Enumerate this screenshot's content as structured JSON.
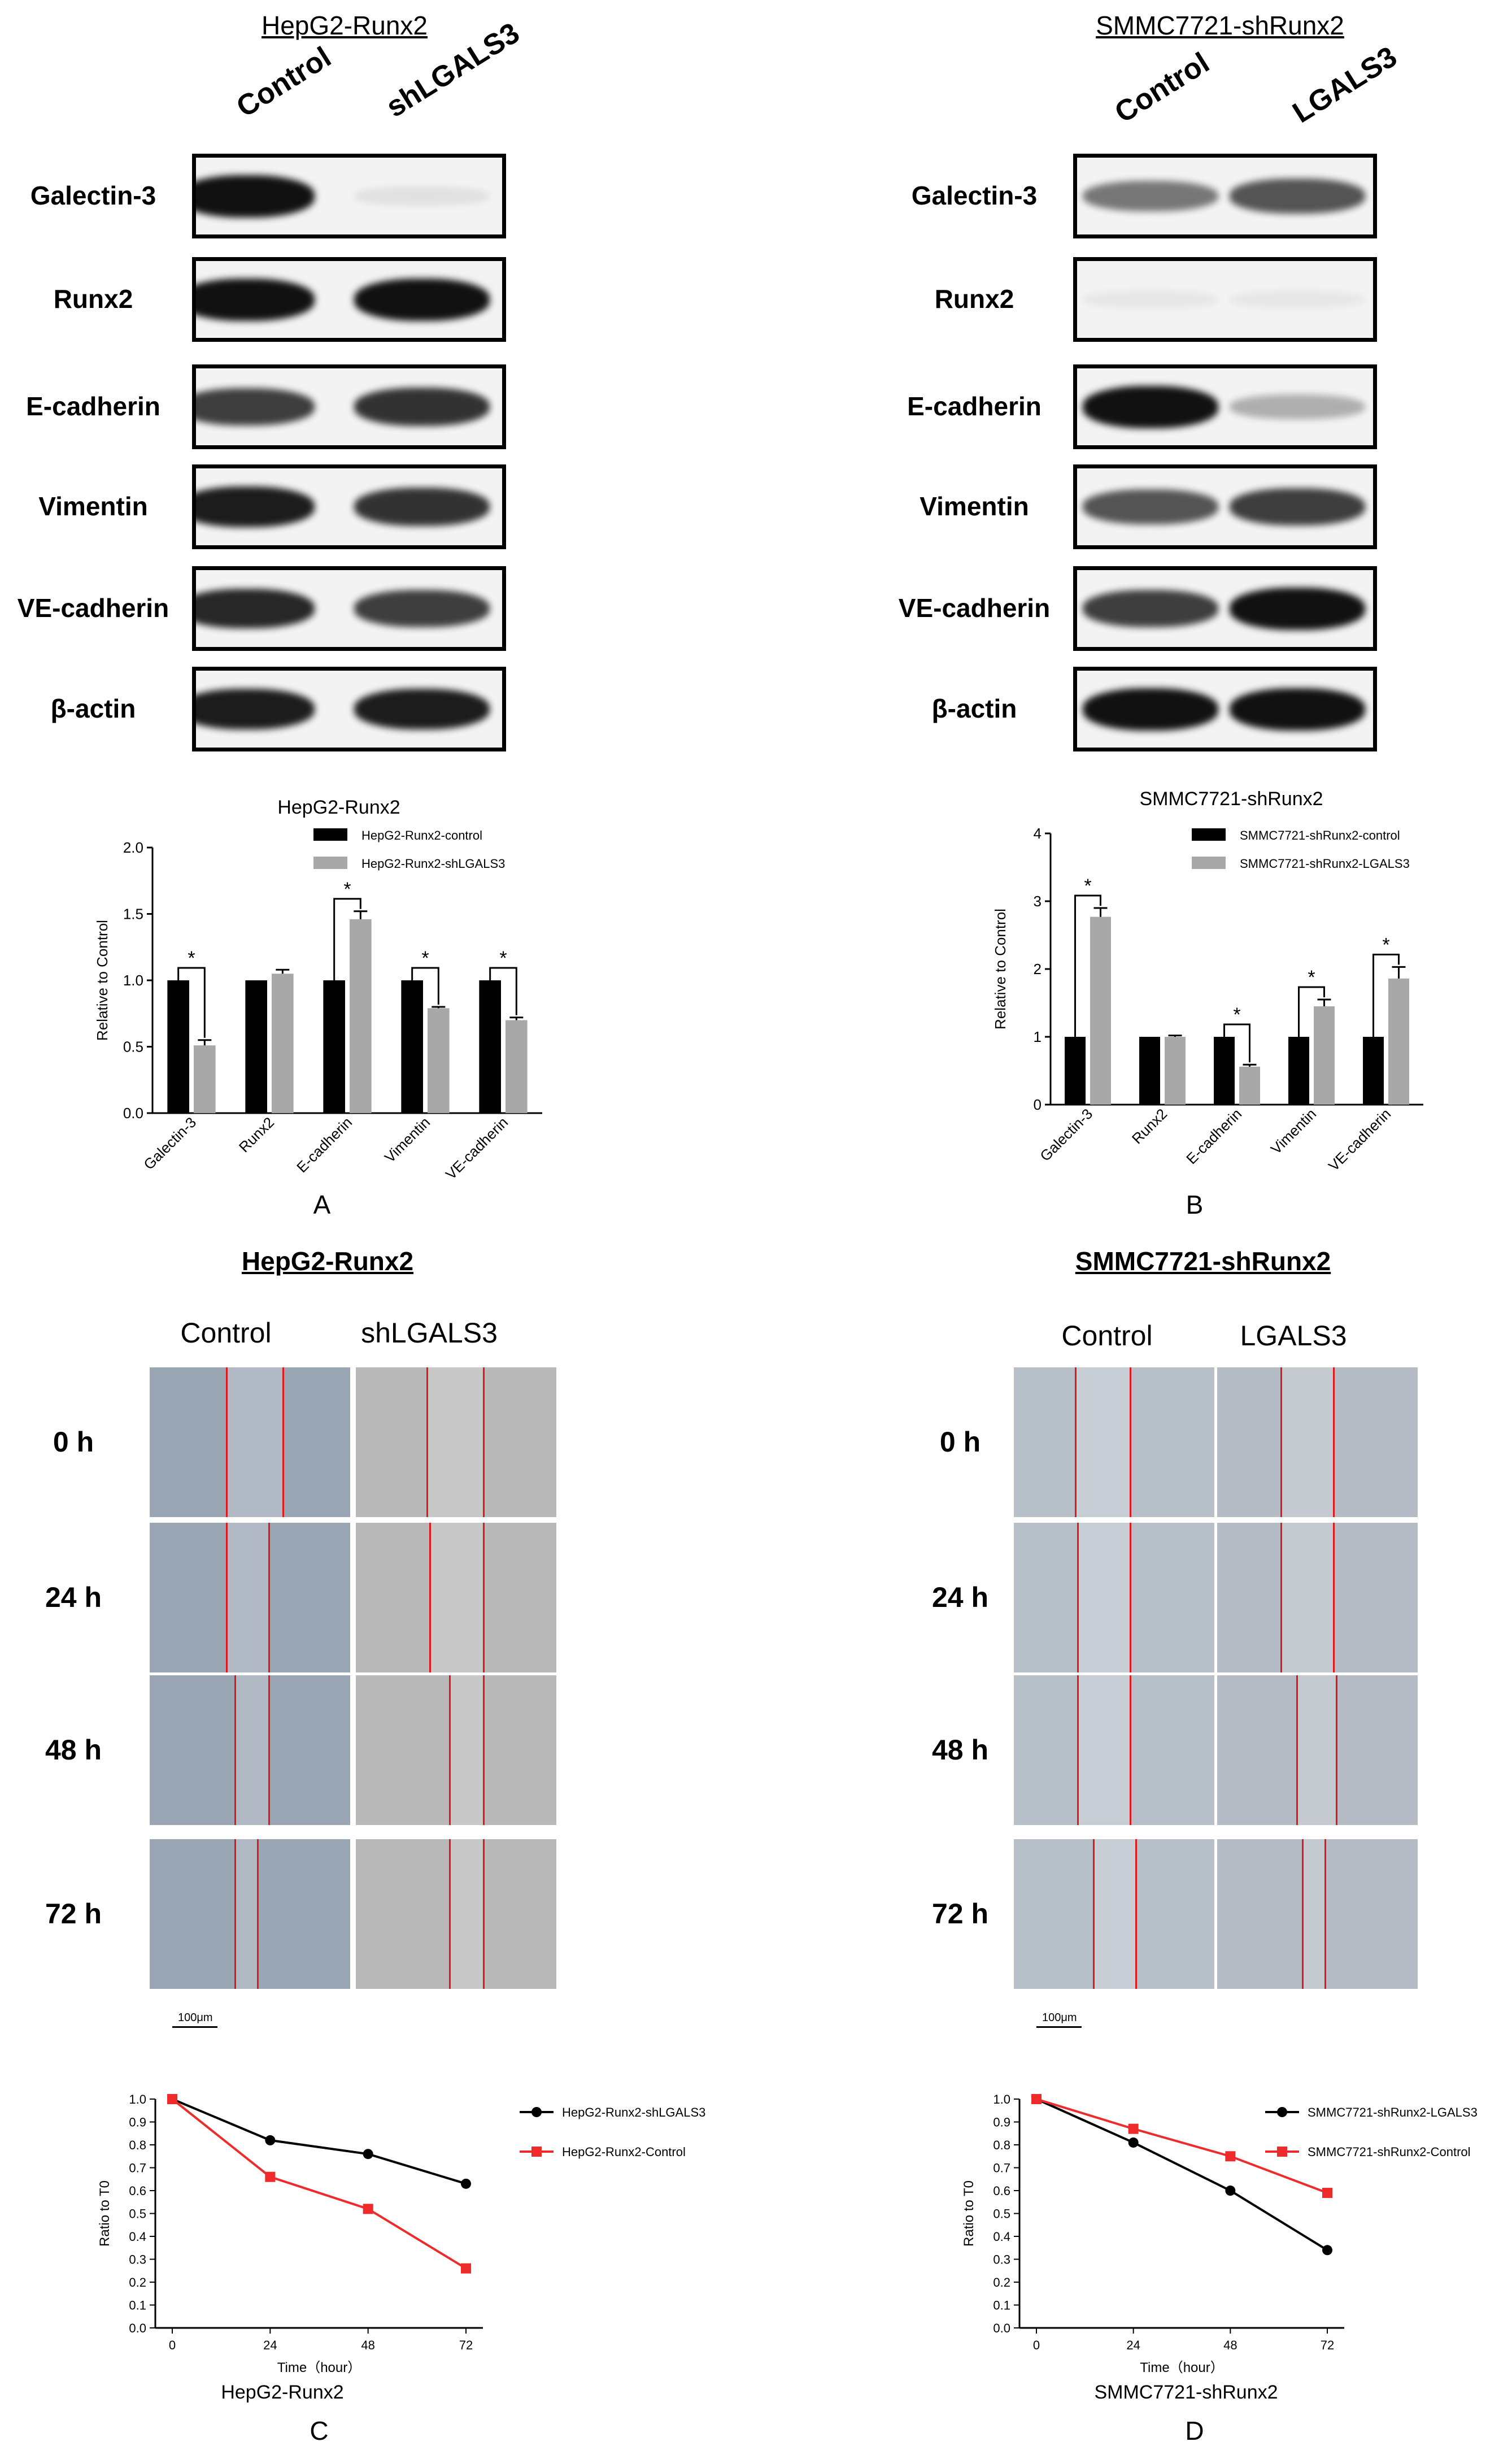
{
  "western_blots": [
    {
      "id": "A",
      "title": "HepG2-Runx2",
      "columns": [
        "Control",
        "shLGALS3"
      ],
      "rows": [
        {
          "protein": "Galectin-3",
          "levels": [
            1.0,
            0.08
          ]
        },
        {
          "protein": "Runx2",
          "levels": [
            1.0,
            1.0
          ]
        },
        {
          "protein": "E-cadherin",
          "levels": [
            0.8,
            0.85
          ]
        },
        {
          "protein": "Vimentin",
          "levels": [
            0.95,
            0.85
          ]
        },
        {
          "protein": "VE-cadherin",
          "levels": [
            0.9,
            0.8
          ]
        },
        {
          "protein": "β-actin",
          "levels": [
            0.95,
            0.95
          ]
        }
      ]
    },
    {
      "id": "B",
      "title": "SMMC7721-shRunx2",
      "columns": [
        "Control",
        "LGALS3"
      ],
      "rows": [
        {
          "protein": "Galectin-3",
          "levels": [
            0.55,
            0.7
          ]
        },
        {
          "protein": "Runx2",
          "levels": [
            0.05,
            0.05
          ]
        },
        {
          "protein": "E-cadherin",
          "levels": [
            1.0,
            0.3
          ]
        },
        {
          "protein": "Vimentin",
          "levels": [
            0.7,
            0.8
          ]
        },
        {
          "protein": "VE-cadherin",
          "levels": [
            0.8,
            1.0
          ]
        },
        {
          "protein": "β-actin",
          "levels": [
            1.0,
            1.0
          ]
        }
      ]
    }
  ],
  "chart_data": [
    {
      "id": "A",
      "type": "bar",
      "title": "HepG2-Runx2",
      "panel_label": "A",
      "ylabel": "Relative to Control",
      "xlabel": "",
      "ylim": [
        0,
        2.0
      ],
      "yticks": [
        "0.0",
        "0.5",
        "1.0",
        "1.5",
        "2.0"
      ],
      "categories": [
        "Galectin-3",
        "Runx2",
        "E-cadherin",
        "Vimentin",
        "VE-cadherin"
      ],
      "series": [
        {
          "name": "HepG2-Runx2-control",
          "color": "#000000",
          "values": [
            1.0,
            1.0,
            1.0,
            1.0,
            1.0
          ],
          "errors": [
            0,
            0,
            0,
            0,
            0
          ]
        },
        {
          "name": "HepG2-Runx2-shLGALS3",
          "color": "#a8a8a8",
          "values": [
            0.51,
            1.05,
            1.46,
            0.79,
            0.7
          ],
          "errors": [
            0.04,
            0.03,
            0.06,
            0.01,
            0.02
          ]
        }
      ],
      "significance": [
        true,
        false,
        true,
        true,
        true
      ],
      "significance_label": "*",
      "legend_position": "top-right",
      "grid": false
    },
    {
      "id": "B",
      "type": "bar",
      "title": "SMMC7721-shRunx2",
      "panel_label": "B",
      "ylabel": "Relative to Control",
      "xlabel": "",
      "ylim": [
        0,
        4
      ],
      "yticks": [
        "0",
        "1",
        "2",
        "3",
        "4"
      ],
      "categories": [
        "Galectin-3",
        "Runx2",
        "E-cadherin",
        "Vimentin",
        "VE-cadherin"
      ],
      "series": [
        {
          "name": "SMMC7721-shRunx2-control",
          "color": "#000000",
          "values": [
            1.0,
            1.0,
            1.0,
            1.0,
            1.0
          ],
          "errors": [
            0,
            0,
            0,
            0,
            0
          ]
        },
        {
          "name": "SMMC7721-shRunx2-LGALS3",
          "color": "#a8a8a8",
          "values": [
            2.77,
            1.0,
            0.56,
            1.45,
            1.86
          ],
          "errors": [
            0.13,
            0.02,
            0.03,
            0.1,
            0.17
          ]
        }
      ],
      "significance": [
        true,
        false,
        true,
        true,
        true
      ],
      "significance_label": "*",
      "legend_position": "top-right",
      "grid": false
    },
    {
      "id": "C",
      "type": "line",
      "title": "",
      "caption": "HepG2-Runx2",
      "panel_label": "C",
      "xlabel": "Time（hour）",
      "ylabel": "Ratio to T0",
      "ylim": [
        0,
        1.0
      ],
      "yticks": [
        "0.0",
        "0.1",
        "0.2",
        "0.3",
        "0.4",
        "0.5",
        "0.6",
        "0.7",
        "0.8",
        "0.9",
        "1.0"
      ],
      "x": [
        0,
        24,
        48,
        72
      ],
      "xticks": [
        "0",
        "24",
        "48",
        "72"
      ],
      "series": [
        {
          "name": "HepG2-Runx2-shLGALS3",
          "color": "#000000",
          "marker": "circle",
          "values": [
            1.0,
            0.82,
            0.76,
            0.63
          ]
        },
        {
          "name": "HepG2-Runx2-Control",
          "color": "#ee2a2a",
          "marker": "square",
          "values": [
            1.0,
            0.66,
            0.52,
            0.26
          ]
        }
      ],
      "legend_position": "top-right",
      "grid": false
    },
    {
      "id": "D",
      "type": "line",
      "title": "",
      "caption": "SMMC7721-shRunx2",
      "panel_label": "D",
      "xlabel": "Time（hour）",
      "ylabel": "Ratio to T0",
      "ylim": [
        0,
        1.0
      ],
      "yticks": [
        "0.0",
        "0.1",
        "0.2",
        "0.3",
        "0.4",
        "0.5",
        "0.6",
        "0.7",
        "0.8",
        "0.9",
        "1.0"
      ],
      "x": [
        0,
        24,
        48,
        72
      ],
      "xticks": [
        "0",
        "24",
        "48",
        "72"
      ],
      "series": [
        {
          "name": "SMMC7721-shRunx2-LGALS3",
          "color": "#000000",
          "marker": "circle",
          "values": [
            1.0,
            0.81,
            0.6,
            0.34
          ]
        },
        {
          "name": "SMMC7721-shRunx2-Control",
          "color": "#ee2a2a",
          "marker": "square",
          "values": [
            1.0,
            0.87,
            0.75,
            0.59
          ]
        }
      ],
      "legend_position": "top-right",
      "grid": false
    }
  ],
  "wound_healing": [
    {
      "title": "HepG2-Runx2",
      "columns": [
        "Control",
        "shLGALS3"
      ],
      "timepoints": [
        "0 h",
        "24 h",
        "48 h",
        "72 h"
      ],
      "scale_bar": "100μm"
    },
    {
      "title": "SMMC7721-shRunx2",
      "columns": [
        "Control",
        "LGALS3"
      ],
      "timepoints": [
        "0 h",
        "24 h",
        "48 h",
        "72 h"
      ],
      "scale_bar": "100μm"
    }
  ]
}
